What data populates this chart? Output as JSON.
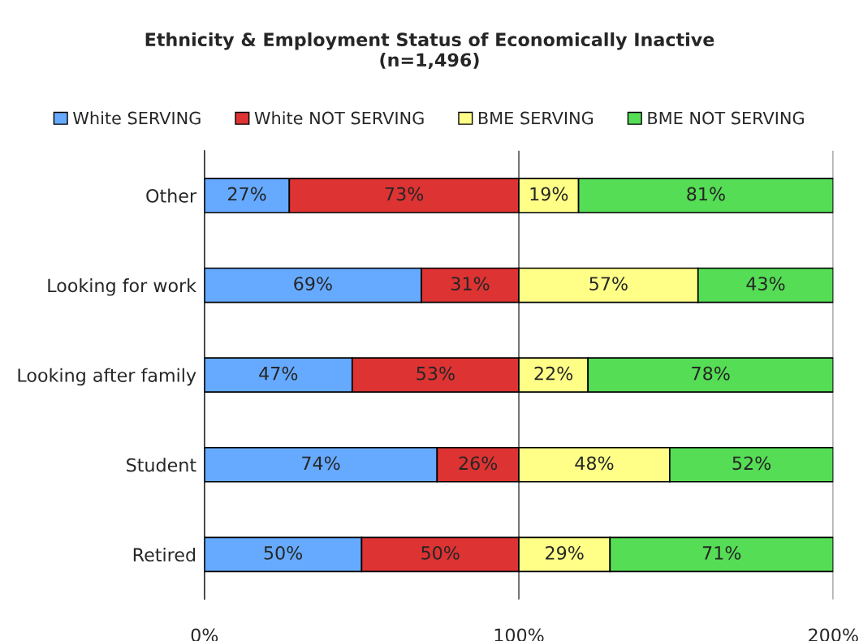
{
  "chart_data": {
    "type": "bar",
    "orientation": "horizontal",
    "stacked": true,
    "title": "Ethnicity & Employment Status of Economically Inactive\n(n=1,496)",
    "categories": [
      "Other",
      "Looking for work",
      "Looking after family",
      "Student",
      "Retired"
    ],
    "series": [
      {
        "name": "White SERVING",
        "color": "#66aaff",
        "values": [
          27,
          69,
          47,
          74,
          50
        ],
        "value_labels": [
          "27%",
          "69%",
          "47%",
          "74%",
          "50%"
        ]
      },
      {
        "name": "White NOT SERVING",
        "color": "#dd3333",
        "values": [
          73,
          31,
          53,
          26,
          50
        ],
        "value_labels": [
          "73%",
          "31%",
          "53%",
          "26%",
          "50%"
        ]
      },
      {
        "name": "BME SERVING",
        "color": "#ffff88",
        "values": [
          19,
          57,
          22,
          48,
          29
        ],
        "value_labels": [
          "19%",
          "57%",
          "22%",
          "48%",
          "29%"
        ]
      },
      {
        "name": "BME NOT SERVING",
        "color": "#55dd55",
        "values": [
          81,
          43,
          78,
          52,
          71
        ],
        "value_labels": [
          "81%",
          "43%",
          "78%",
          "52%",
          "71%"
        ]
      }
    ],
    "xlim": [
      0,
      200
    ],
    "xticks": [
      {
        "value": 0,
        "label": "0%"
      },
      {
        "value": 100,
        "label": "100%"
      },
      {
        "value": 200,
        "label": "200%"
      }
    ],
    "grid": "x",
    "legend": "top"
  }
}
